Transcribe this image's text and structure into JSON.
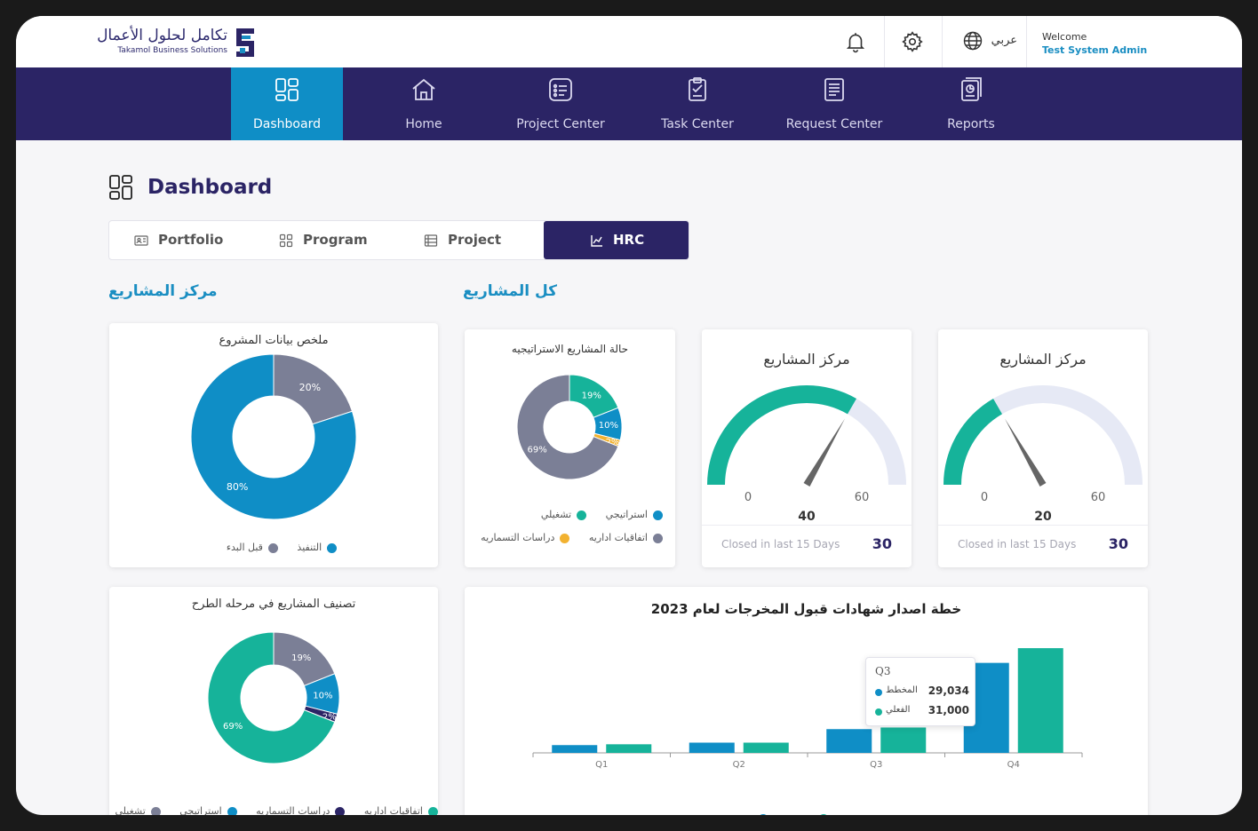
{
  "brand": {
    "name_ar": "تكامل لحلول الأعمال",
    "name_en": "Takamol Business Solutions",
    "accent": "#1a8ec2",
    "navy": "#2b2465"
  },
  "topbar": {
    "notifications_icon": "bell-icon",
    "settings_icon": "gear-icon",
    "language_icon": "globe-icon",
    "language_label": "عربي",
    "welcome_label": "Welcome",
    "user_name": "Test System Admin"
  },
  "nav": {
    "items": [
      {
        "label": "Dashboard",
        "icon": "grid-icon",
        "active": true
      },
      {
        "label": "Home",
        "icon": "home-icon",
        "active": false
      },
      {
        "label": "Project Center",
        "icon": "list-box-icon",
        "active": false
      },
      {
        "label": "Task Center",
        "icon": "clipboard-icon",
        "active": false
      },
      {
        "label": "Request Center",
        "icon": "document-icon",
        "active": false
      },
      {
        "label": "Reports",
        "icon": "report-icon",
        "active": false
      }
    ]
  },
  "page": {
    "title": "Dashboard"
  },
  "tabs": [
    {
      "label": "Portfolio",
      "icon": "id-card-icon",
      "active": false
    },
    {
      "label": "Program",
      "icon": "grid-icon",
      "active": false
    },
    {
      "label": "Project",
      "icon": "list-icon",
      "active": false
    },
    {
      "label": "HRC",
      "icon": "line-chart-icon",
      "active": true
    }
  ],
  "sections": {
    "projects_center": "مركز المشاريع",
    "all_projects": "كل المشاريع"
  },
  "chart_data": [
    {
      "type": "pie",
      "title": "ملخص بيانات المشروع",
      "slices": [
        {
          "label": "قبل البدء",
          "value": 20,
          "display": "20%",
          "color": "#7b7f96"
        },
        {
          "label": "التنفيذ",
          "value": 80,
          "display": "80%",
          "color": "#0f8ec6"
        }
      ]
    },
    {
      "type": "pie",
      "title": "حالة المشاريع الاستراتيجيه",
      "slices": [
        {
          "label": "تشغيلي",
          "value": 19,
          "display": "19%",
          "color": "#16b39a"
        },
        {
          "label": "استراتيجي",
          "value": 10,
          "display": "10%",
          "color": "#0f8ec6"
        },
        {
          "label": "دراسات التسماريه",
          "value": 2,
          "display": "2%",
          "color": "#f2b230"
        },
        {
          "label": "اتفاقيات اداريه",
          "value": 69,
          "display": "69%",
          "color": "#7b7f96"
        }
      ]
    },
    {
      "type": "gauge",
      "title": "مركز المشاريع",
      "value": 40,
      "min": 0,
      "max": 60,
      "min_label": "0",
      "max_label": "60",
      "value_label": "40",
      "footer_label": "Closed in last 15 Days",
      "footer_value": "30"
    },
    {
      "type": "gauge",
      "title": "مركز المشاريع",
      "value": 20,
      "min": 0,
      "max": 60,
      "min_label": "0",
      "max_label": "60",
      "value_label": "20",
      "footer_label": "Closed in last 15 Days",
      "footer_value": "30"
    },
    {
      "type": "pie",
      "title": "تصنيف المشاريع في مرحله الطرح",
      "slices": [
        {
          "label": "تشغيلي",
          "value": 19,
          "display": "19%",
          "color": "#7b7f96"
        },
        {
          "label": "استراتيجي",
          "value": 10,
          "display": "10%",
          "color": "#0f8ec6"
        },
        {
          "label": "دراسات التسماريه",
          "value": 2,
          "display": "2%",
          "color": "#2b2465"
        },
        {
          "label": "اتفاقيات اداريه",
          "value": 69,
          "display": "69%",
          "color": "#16b39a"
        }
      ]
    },
    {
      "type": "bar",
      "title": "خطة اصدار شهادات قبول المخرجات لعام 2023",
      "categories": [
        "Q1",
        "Q2",
        "Q3",
        "Q4"
      ],
      "series": [
        {
          "name": "المخطط",
          "color": "#0f8ec6",
          "values": [
            9500,
            12500,
            29034,
            110000
          ]
        },
        {
          "name": "الفعلي",
          "color": "#16b39a",
          "values": [
            10500,
            12500,
            31000,
            128000
          ]
        }
      ],
      "ylim": [
        0,
        140000
      ],
      "tooltip": {
        "title": "Q3",
        "rows": [
          {
            "name": "المخطط",
            "value": "29,034"
          },
          {
            "name": "الفعلي",
            "value": "31,000"
          }
        ]
      }
    }
  ]
}
